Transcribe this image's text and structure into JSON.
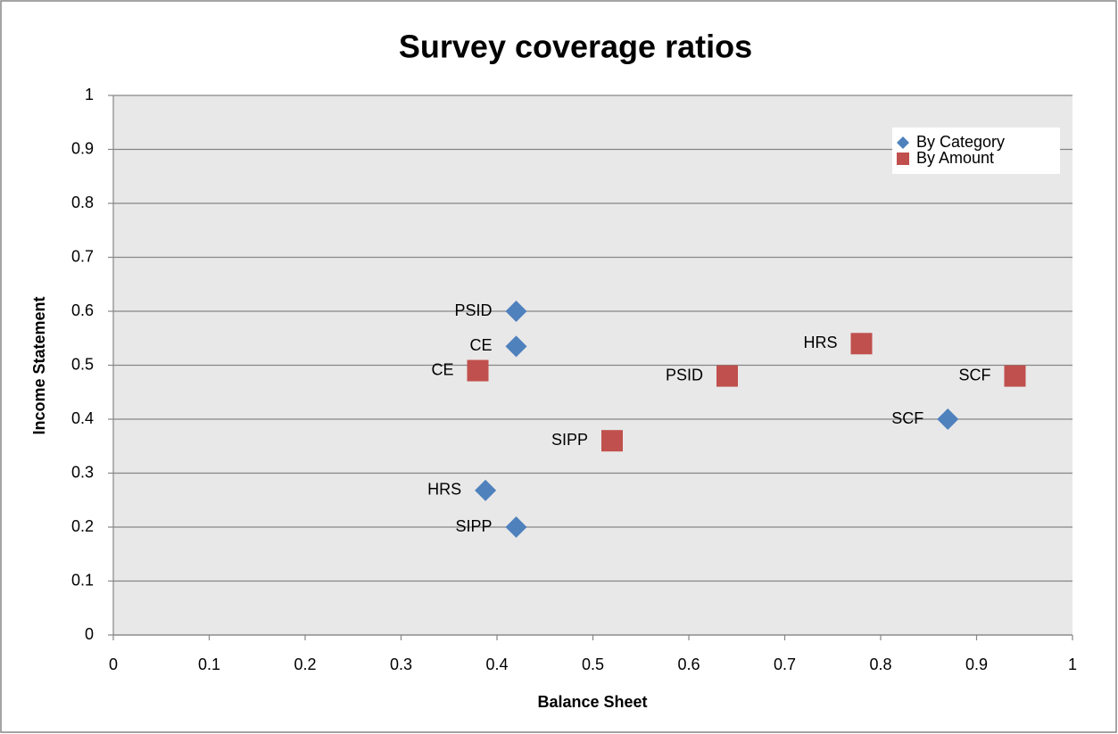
{
  "chart_data": {
    "type": "scatter",
    "title": "Survey coverage ratios",
    "x_label": "Balance Sheet",
    "y_label": "Income Statement",
    "xlim": [
      0,
      1
    ],
    "ylim": [
      0,
      1
    ],
    "xticks": [
      0,
      0.1,
      0.2,
      0.3,
      0.4,
      0.5,
      0.6,
      0.7,
      0.8,
      0.9,
      1
    ],
    "yticks": [
      0,
      0.1,
      0.2,
      0.3,
      0.4,
      0.5,
      0.6,
      0.7,
      0.8,
      0.9,
      1
    ],
    "grid": "y",
    "legend": "upper right",
    "series": [
      {
        "name": "By Category",
        "color": "#4f81bd",
        "marker": "diamond",
        "labels": [
          "PSID",
          "CE",
          "SCF",
          "HRS",
          "SIPP"
        ],
        "x": [
          0.42,
          0.42,
          0.87,
          0.388,
          0.42
        ],
        "values": [
          0.6,
          0.535,
          0.4,
          0.268,
          0.2
        ]
      },
      {
        "name": "By Amount",
        "color": "#c0504d",
        "marker": "square",
        "labels": [
          "CE",
          "HRS",
          "PSID",
          "SCF",
          "SIPP"
        ],
        "x": [
          0.38,
          0.78,
          0.64,
          0.94,
          0.52
        ],
        "values": [
          0.49,
          0.54,
          0.48,
          0.48,
          0.36
        ]
      }
    ]
  }
}
